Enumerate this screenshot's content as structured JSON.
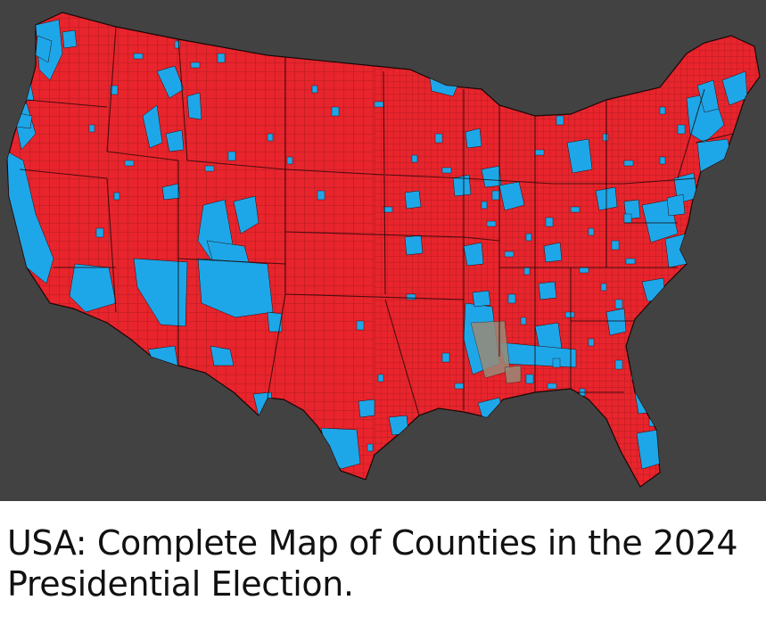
{
  "caption": "USA: Complete Map of Counties in the 2024 Presidential Election.",
  "map": {
    "subject": "United States counties, 2024 presidential election results",
    "colors": {
      "background": "#424242",
      "republican": "#e8242c",
      "democratic": "#1ea7e8",
      "no_data": "#9a8a78",
      "borders": "#2a0c0c"
    }
  }
}
